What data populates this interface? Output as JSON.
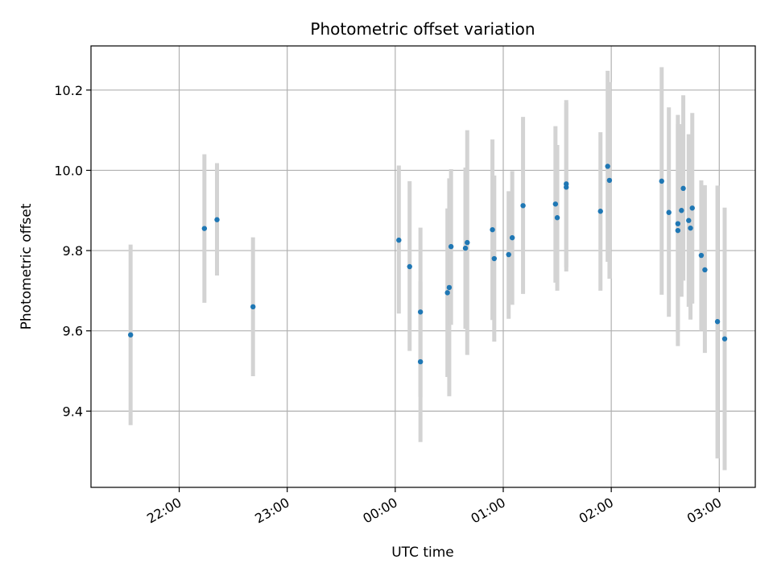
{
  "chart_data": {
    "type": "scatter",
    "title": "Photometric offset variation",
    "xlabel": "UTC time",
    "ylabel": "Photometric offset",
    "x_axis_kind": "time (UTC), spanning midnight",
    "xlim": [
      "21:11",
      "03:20"
    ],
    "ylim": [
      9.21,
      10.31
    ],
    "x_ticks": [
      "22:00",
      "23:00",
      "00:00",
      "01:00",
      "02:00",
      "03:00"
    ],
    "y_ticks": [
      "9.4",
      "9.6",
      "9.8",
      "10.0",
      "10.2"
    ],
    "grid": true,
    "legend": "none",
    "colors": {
      "point": "#1f77b4",
      "errorbar": "#d3d3d3",
      "grid": "#b0b0b0",
      "axes": "#000000"
    },
    "series": [
      {
        "error_bars": "vertical",
        "points": [
          {
            "time": "21:33",
            "y": 9.59,
            "low": 9.365,
            "high": 9.815
          },
          {
            "time": "22:14",
            "y": 9.855,
            "low": 9.67,
            "high": 10.04
          },
          {
            "time": "22:21",
            "y": 9.877,
            "low": 9.738,
            "high": 10.018
          },
          {
            "time": "22:41",
            "y": 9.66,
            "low": 9.487,
            "high": 9.833
          },
          {
            "time": "00:02",
            "y": 9.826,
            "low": 9.643,
            "high": 10.012
          },
          {
            "time": "00:08",
            "y": 9.76,
            "low": 9.55,
            "high": 9.973
          },
          {
            "time": "00:14",
            "y": 9.647,
            "low": 9.435,
            "high": 9.857
          },
          {
            "time": "00:14",
            "y": 9.523,
            "low": 9.323,
            "high": 9.723
          },
          {
            "time": "00:29",
            "y": 9.695,
            "low": 9.485,
            "high": 9.905
          },
          {
            "time": "00:30",
            "y": 9.708,
            "low": 9.437,
            "high": 9.98
          },
          {
            "time": "00:31",
            "y": 9.81,
            "low": 9.615,
            "high": 10.003
          },
          {
            "time": "00:39",
            "y": 9.806,
            "low": 9.605,
            "high": 10.007
          },
          {
            "time": "00:40",
            "y": 9.82,
            "low": 9.54,
            "high": 10.1
          },
          {
            "time": "00:54",
            "y": 9.852,
            "low": 9.627,
            "high": 10.077
          },
          {
            "time": "00:55",
            "y": 9.78,
            "low": 9.573,
            "high": 9.987
          },
          {
            "time": "01:03",
            "y": 9.79,
            "low": 9.63,
            "high": 9.948
          },
          {
            "time": "01:05",
            "y": 9.832,
            "low": 9.665,
            "high": 9.998
          },
          {
            "time": "01:11",
            "y": 9.912,
            "low": 9.692,
            "high": 10.133
          },
          {
            "time": "01:29",
            "y": 9.916,
            "low": 9.72,
            "high": 10.11
          },
          {
            "time": "01:30",
            "y": 9.882,
            "low": 9.7,
            "high": 10.063
          },
          {
            "time": "01:35",
            "y": 9.966,
            "low": 9.758,
            "high": 10.175
          },
          {
            "time": "01:35",
            "y": 9.958,
            "low": 9.748,
            "high": 10.168
          },
          {
            "time": "01:54",
            "y": 9.898,
            "low": 9.7,
            "high": 10.095
          },
          {
            "time": "01:58",
            "y": 10.01,
            "low": 9.772,
            "high": 10.248
          },
          {
            "time": "01:59",
            "y": 9.975,
            "low": 9.73,
            "high": 10.22
          },
          {
            "time": "02:28",
            "y": 9.973,
            "low": 9.69,
            "high": 10.257
          },
          {
            "time": "02:32",
            "y": 9.895,
            "low": 9.635,
            "high": 10.157
          },
          {
            "time": "02:37",
            "y": 9.867,
            "low": 9.595,
            "high": 10.138
          },
          {
            "time": "02:37",
            "y": 9.85,
            "low": 9.562,
            "high": 10.115
          },
          {
            "time": "02:39",
            "y": 9.9,
            "low": 9.685,
            "high": 10.115
          },
          {
            "time": "02:40",
            "y": 9.955,
            "low": 9.725,
            "high": 10.187
          },
          {
            "time": "02:43",
            "y": 9.875,
            "low": 9.66,
            "high": 10.09
          },
          {
            "time": "02:44",
            "y": 9.856,
            "low": 9.628,
            "high": 10.085
          },
          {
            "time": "02:45",
            "y": 9.906,
            "low": 9.668,
            "high": 10.143
          },
          {
            "time": "02:50",
            "y": 9.788,
            "low": 9.6,
            "high": 9.975
          },
          {
            "time": "02:52",
            "y": 9.752,
            "low": 9.545,
            "high": 9.963
          },
          {
            "time": "02:59",
            "y": 9.623,
            "low": 9.282,
            "high": 9.962
          },
          {
            "time": "03:03",
            "y": 9.58,
            "low": 9.253,
            "high": 9.907
          }
        ]
      }
    ]
  }
}
